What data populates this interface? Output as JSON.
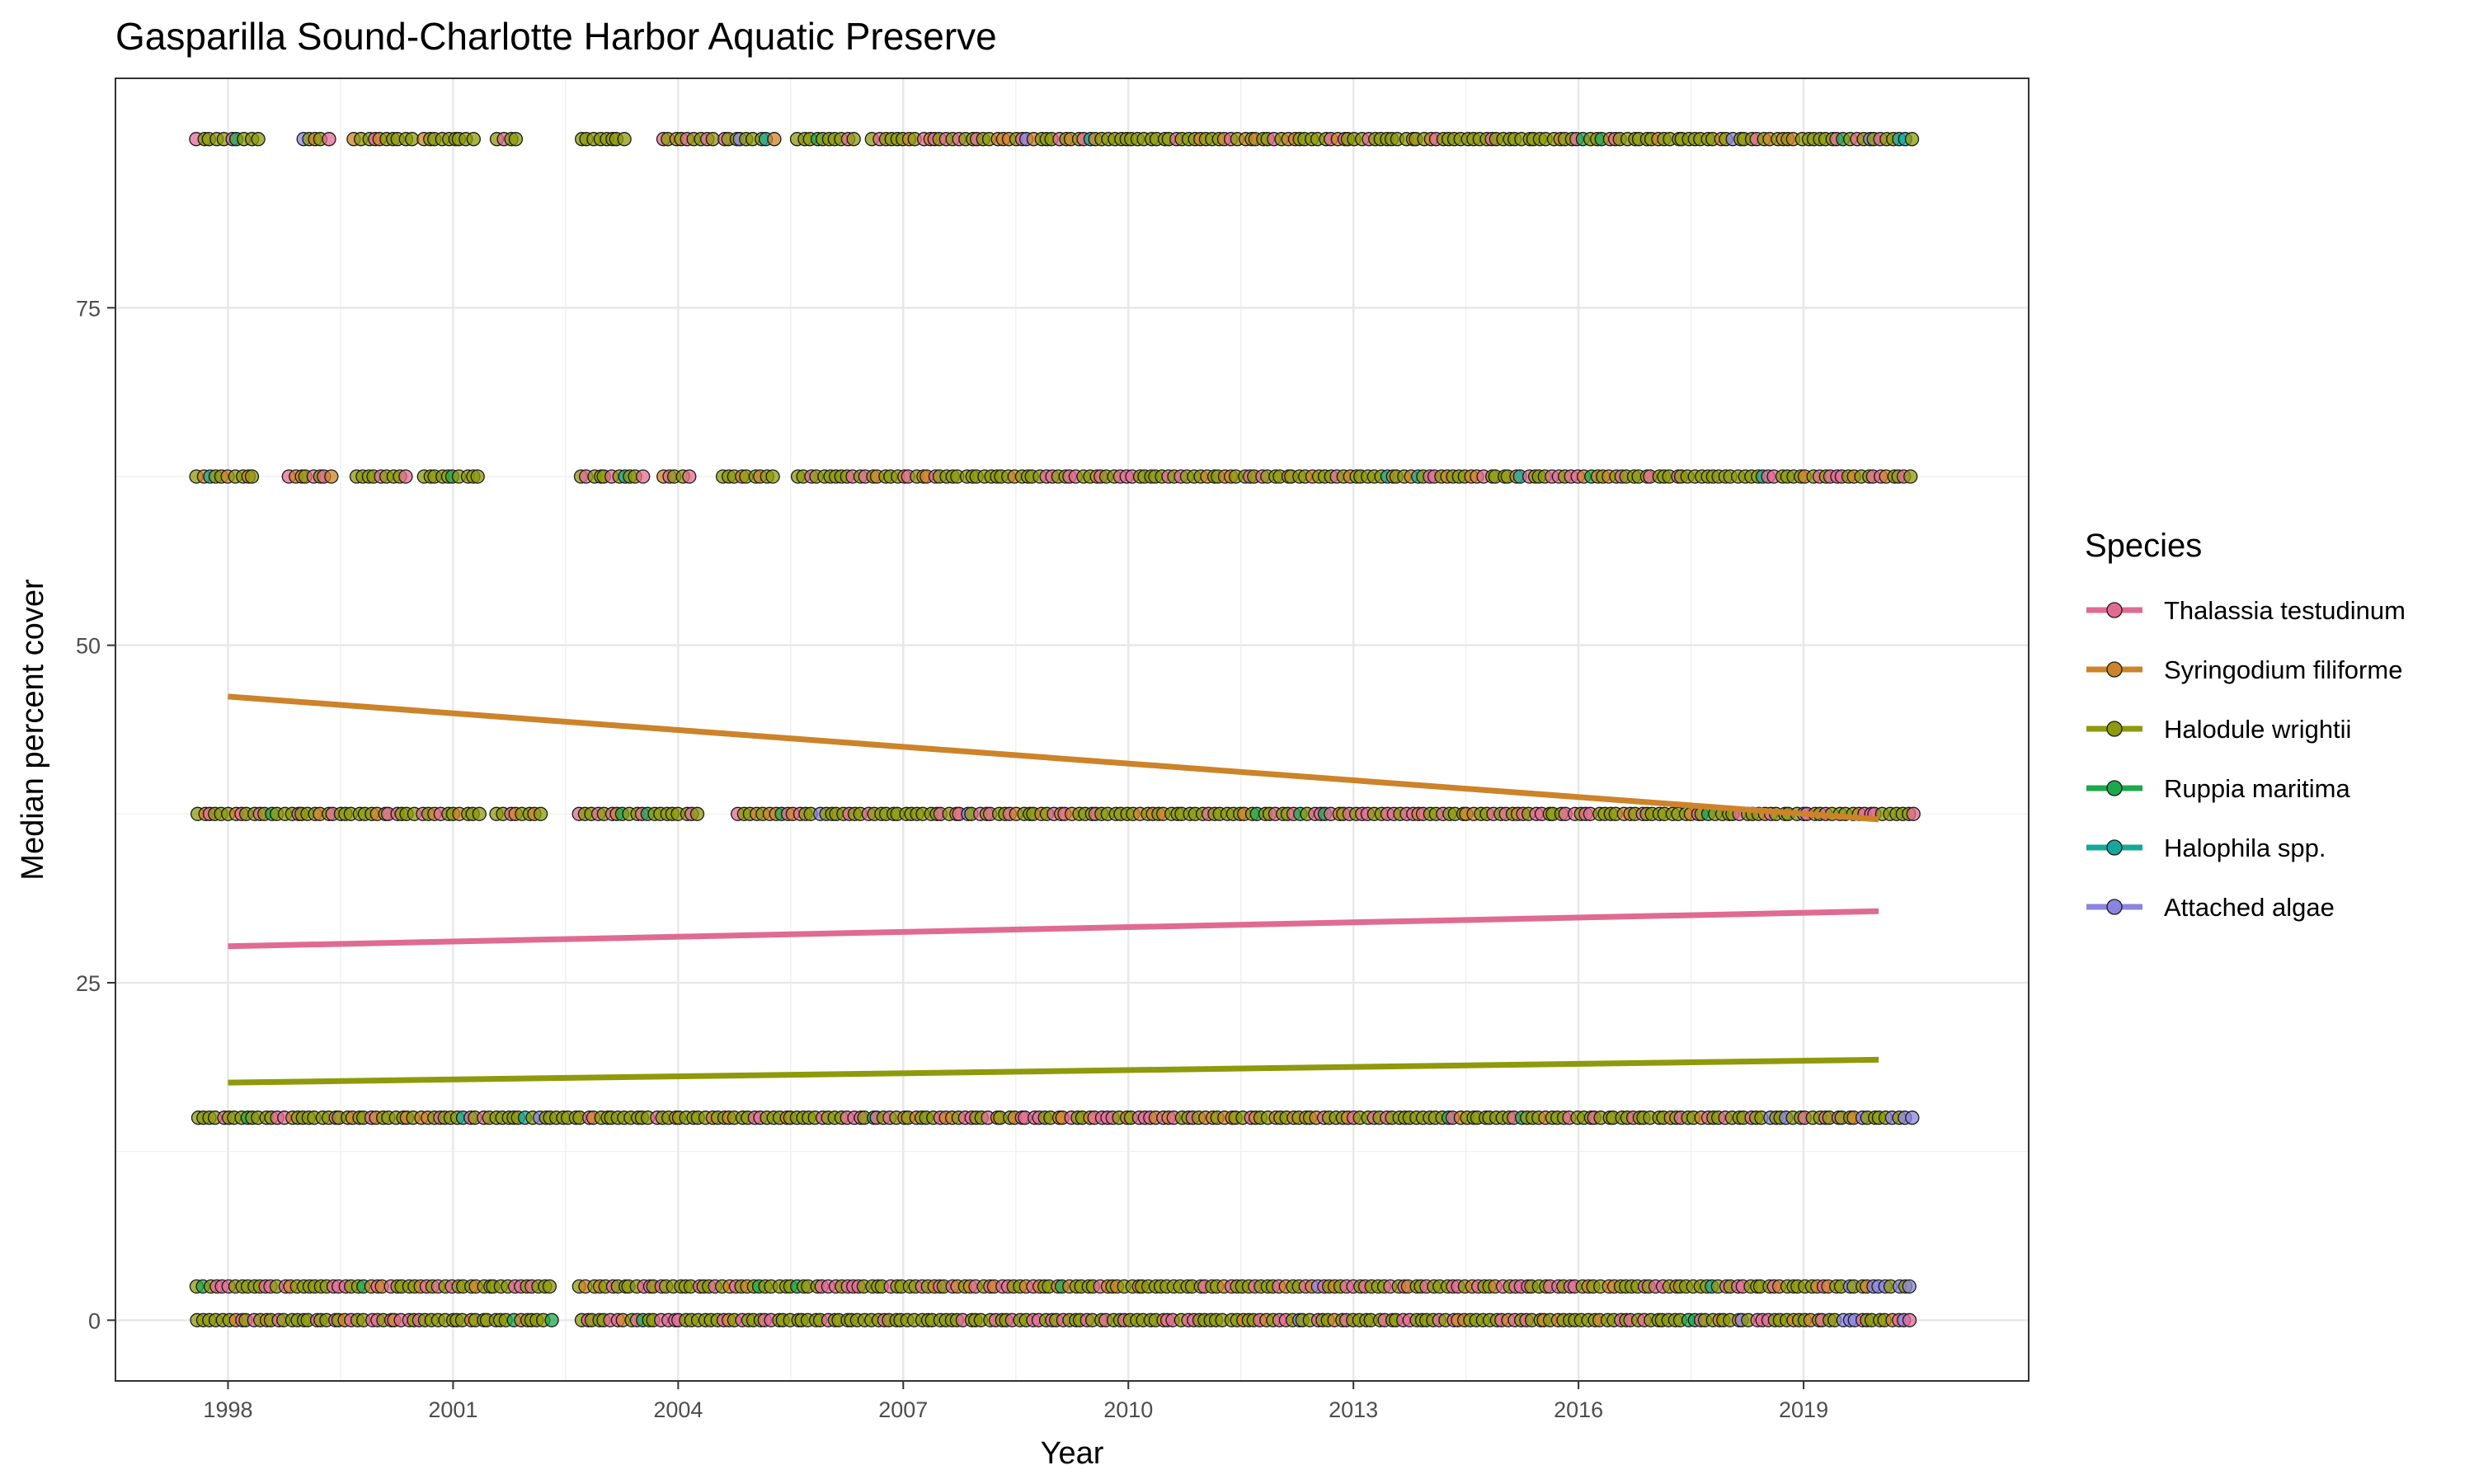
{
  "chart_data": {
    "type": "scatter",
    "title": "Gasparilla Sound-Charlotte Harbor Aquatic Preserve",
    "xlabel": "Year",
    "ylabel": "Median percent cover",
    "xlim": [
      1996.5,
      2022.0
    ],
    "ylim": [
      -4.5,
      92.0
    ],
    "xticks": [
      1998,
      2001,
      2004,
      2007,
      2010,
      2013,
      2016,
      2019
    ],
    "xtick_labels": [
      "1998",
      "2001",
      "2004",
      "2007",
      "2010",
      "2013",
      "2016",
      "2019"
    ],
    "yticks": [
      0,
      25,
      50,
      75
    ],
    "ytick_labels": [
      "0",
      "25",
      "50",
      "75"
    ],
    "grid": true,
    "legend": {
      "title": "Species",
      "position": "right"
    },
    "point_levels": [
      0,
      2.5,
      15,
      37.5,
      62.5,
      87.5
    ],
    "observation_ranges": [
      {
        "level": 87.5,
        "segments": [
          [
            1997.6,
            1997.95
          ],
          [
            1998.05,
            1998.4
          ],
          [
            1999.0,
            1999.4
          ],
          [
            1999.7,
            2000.45
          ],
          [
            2000.6,
            2001.3
          ],
          [
            2001.6,
            2001.9
          ],
          [
            2002.7,
            2003.3
          ],
          [
            2003.8,
            2004.5
          ],
          [
            2004.6,
            2005.3
          ],
          [
            2005.6,
            2006.4
          ],
          [
            2006.6,
            2020.5
          ]
        ]
      },
      {
        "level": 62.5,
        "segments": [
          [
            1997.6,
            1998.4
          ],
          [
            1998.8,
            1999.4
          ],
          [
            1999.7,
            2000.4
          ],
          [
            2000.6,
            2001.4
          ],
          [
            2002.7,
            2003.6
          ],
          [
            2003.8,
            2004.2
          ],
          [
            2004.6,
            2005.3
          ],
          [
            2005.6,
            2020.5
          ]
        ]
      },
      {
        "level": 37.5,
        "segments": [
          [
            1997.6,
            2000.5
          ],
          [
            2000.6,
            2001.4
          ],
          [
            2001.6,
            2002.2
          ],
          [
            2002.7,
            2004.3
          ],
          [
            2004.8,
            2020.5
          ]
        ]
      },
      {
        "level": 15,
        "segments": [
          [
            1997.6,
            2020.5
          ]
        ]
      },
      {
        "level": 2.5,
        "segments": [
          [
            1997.6,
            2002.3
          ],
          [
            2002.7,
            2020.5
          ]
        ]
      },
      {
        "level": 0,
        "segments": [
          [
            1997.6,
            2002.3
          ],
          [
            2002.7,
            2020.5
          ]
        ]
      }
    ],
    "series": [
      {
        "name": "Thalassia testudinum",
        "color": "#e06b91",
        "trend": {
          "x": [
            1998,
            2020
          ],
          "y": [
            27.7,
            30.3
          ]
        }
      },
      {
        "name": "Syringodium filiforme",
        "color": "#cc8329",
        "trend": {
          "x": [
            1998,
            2020
          ],
          "y": [
            46.2,
            37.1
          ]
        }
      },
      {
        "name": "Halodule wrightii",
        "color": "#8e9a0b",
        "trend": {
          "x": [
            1998,
            2020
          ],
          "y": [
            17.6,
            19.3
          ]
        }
      },
      {
        "name": "Ruppia maritima",
        "color": "#1ea84c"
      },
      {
        "name": "Halophila spp.",
        "color": "#15a89a"
      },
      {
        "name": "Attached algae",
        "color": "#8b84df"
      }
    ]
  }
}
